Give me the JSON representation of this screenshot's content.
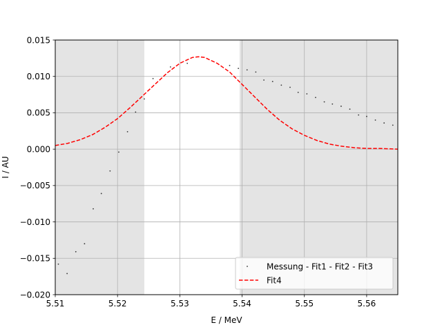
{
  "chart_data": {
    "type": "scatter",
    "xlabel": "E / MeV",
    "ylabel": "I / AU",
    "xlim": [
      5.51,
      5.565
    ],
    "ylim": [
      -0.02,
      0.015
    ],
    "x_ticks": [
      5.51,
      5.52,
      5.53,
      5.54,
      5.55,
      5.56
    ],
    "x_tick_labels": [
      "5.51",
      "5.52",
      "5.53",
      "5.54",
      "5.55",
      "5.56"
    ],
    "y_ticks": [
      -0.02,
      -0.015,
      -0.01,
      -0.005,
      0.0,
      0.005,
      0.01,
      0.015
    ],
    "y_tick_labels": [
      "−0.020",
      "−0.015",
      "−0.010",
      "−0.005",
      "0.000",
      "0.005",
      "0.010",
      "0.015"
    ],
    "grid": true,
    "legend_position": "lower-right",
    "shaded_regions": [
      {
        "x_from": 5.51,
        "x_to": 5.5243,
        "color": "#e4e4e4"
      },
      {
        "x_from": 5.5396,
        "x_to": 5.565,
        "color": "#e4e4e4"
      }
    ],
    "series": [
      {
        "name": "Messung - Fit1 - Fit2 - Fit3",
        "kind": "scatter",
        "color": "#333333",
        "points": [
          [
            5.5105,
            -0.0158
          ],
          [
            5.5119,
            -0.0171
          ],
          [
            5.5133,
            -0.0141
          ],
          [
            5.5147,
            -0.013
          ],
          [
            5.5161,
            -0.0082
          ],
          [
            5.5174,
            -0.0061
          ],
          [
            5.5188,
            -0.003
          ],
          [
            5.5202,
            -0.0004
          ],
          [
            5.5216,
            0.0024
          ],
          [
            5.5229,
            0.0051
          ],
          [
            5.5243,
            0.0069
          ],
          [
            5.5257,
            0.0097
          ],
          [
            5.5285,
            0.0113
          ],
          [
            5.5312,
            0.0118
          ],
          [
            5.538,
            0.0115
          ],
          [
            5.5394,
            0.0111
          ],
          [
            5.5408,
            0.0109
          ],
          [
            5.5422,
            0.0106
          ],
          [
            5.5435,
            0.0095
          ],
          [
            5.5449,
            0.0093
          ],
          [
            5.5463,
            0.0088
          ],
          [
            5.5477,
            0.0085
          ],
          [
            5.549,
            0.0078
          ],
          [
            5.5504,
            0.0076
          ],
          [
            5.5518,
            0.0071
          ],
          [
            5.5532,
            0.0065
          ],
          [
            5.5545,
            0.0062
          ],
          [
            5.5559,
            0.0059
          ],
          [
            5.5573,
            0.0055
          ],
          [
            5.5587,
            0.0047
          ],
          [
            5.56,
            0.0045
          ],
          [
            5.5614,
            0.004
          ],
          [
            5.5628,
            0.0036
          ],
          [
            5.5642,
            0.0033
          ]
        ]
      },
      {
        "name": "Fit4",
        "kind": "line",
        "style": "dashed",
        "color": "#ff0000",
        "points": [
          [
            5.51,
            0.0005
          ],
          [
            5.512,
            0.0008
          ],
          [
            5.514,
            0.0013
          ],
          [
            5.516,
            0.002
          ],
          [
            5.518,
            0.003
          ],
          [
            5.52,
            0.0042
          ],
          [
            5.522,
            0.0057
          ],
          [
            5.524,
            0.0073
          ],
          [
            5.526,
            0.0089
          ],
          [
            5.528,
            0.0105
          ],
          [
            5.53,
            0.0118
          ],
          [
            5.532,
            0.0126
          ],
          [
            5.533,
            0.0127
          ],
          [
            5.534,
            0.0126
          ],
          [
            5.536,
            0.0118
          ],
          [
            5.538,
            0.0106
          ],
          [
            5.54,
            0.0089
          ],
          [
            5.542,
            0.0072
          ],
          [
            5.544,
            0.0055
          ],
          [
            5.546,
            0.004
          ],
          [
            5.548,
            0.0028
          ],
          [
            5.55,
            0.0019
          ],
          [
            5.552,
            0.0012
          ],
          [
            5.554,
            0.0007
          ],
          [
            5.556,
            0.0004
          ],
          [
            5.558,
            0.0002
          ],
          [
            5.56,
            0.0001
          ],
          [
            5.562,
            0.0001
          ],
          [
            5.565,
            0.0
          ]
        ]
      }
    ]
  }
}
